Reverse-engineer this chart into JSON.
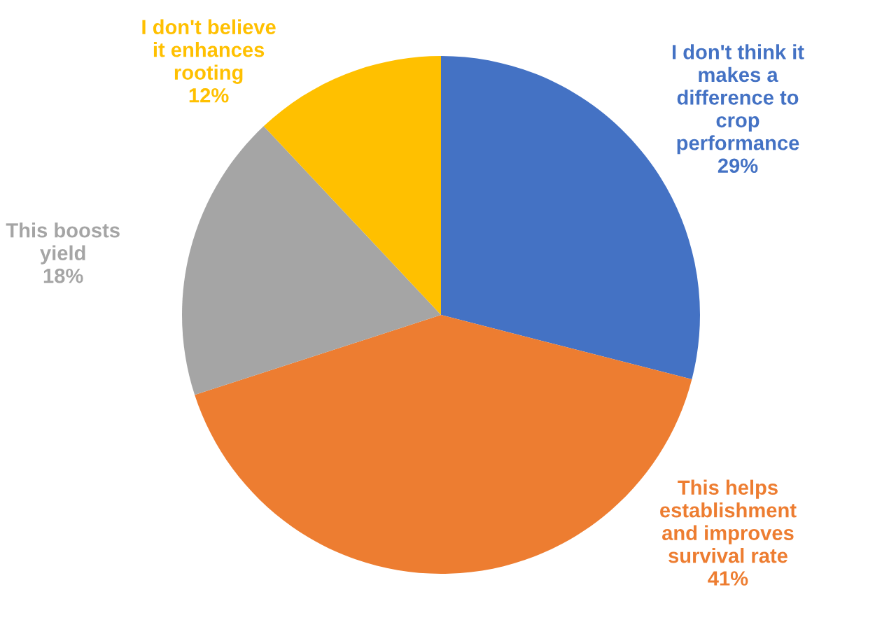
{
  "chart_data": {
    "type": "pie",
    "categories": [
      "I don't think it makes a difference to crop performance",
      "This helps establishment and improves survival rate",
      "This boosts yield",
      "I don't believe it enhances rooting"
    ],
    "values": [
      29,
      41,
      18,
      12
    ],
    "colors": [
      "#4472c4",
      "#ed7d31",
      "#a5a5a5",
      "#ffc000"
    ],
    "value_labels": [
      "29%",
      "41%",
      "18%",
      "12%"
    ]
  }
}
